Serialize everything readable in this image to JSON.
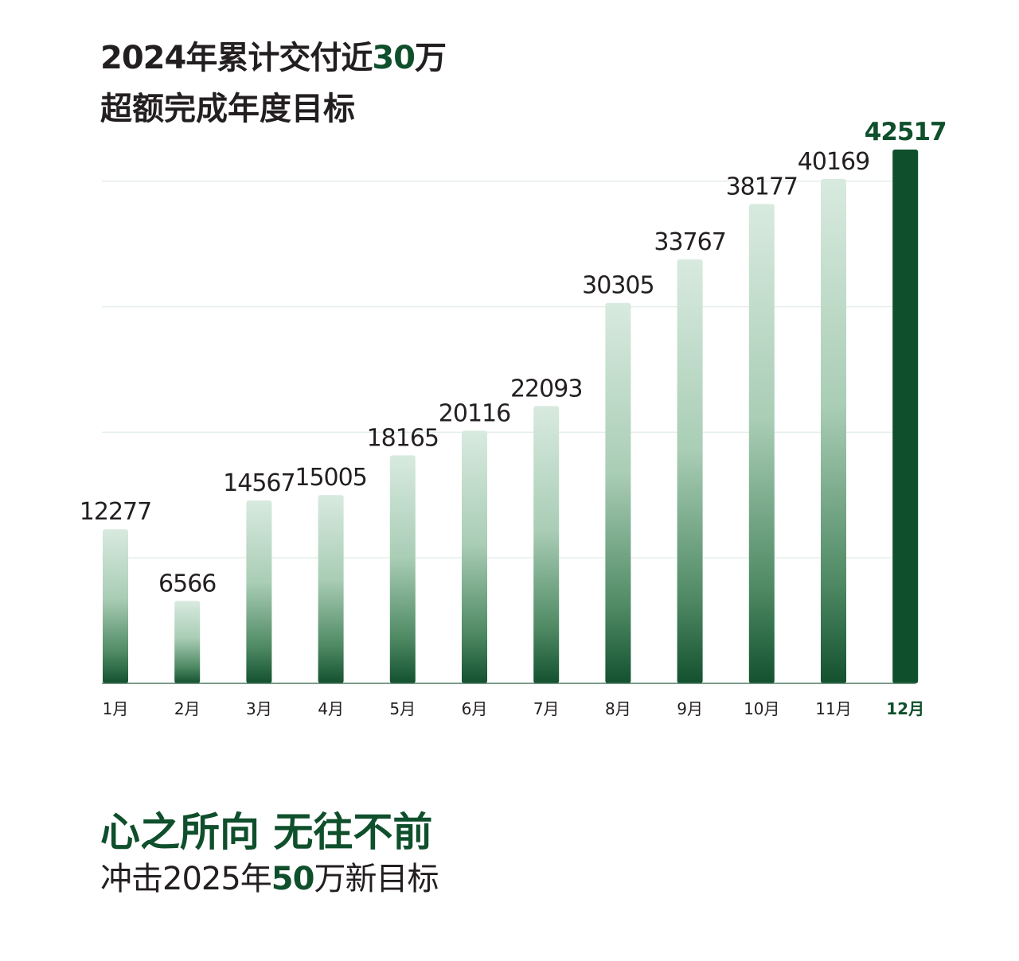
{
  "header": {
    "title_prefix": "2024年累计交付近",
    "title_highlight": "30",
    "title_suffix": "万",
    "subtitle": "超额完成年度目标"
  },
  "footer": {
    "slogan": "心之所向 无往不前",
    "goal_prefix": "冲击2025年",
    "goal_highlight": "50",
    "goal_suffix": "万新目标"
  },
  "colors": {
    "accent": "#0f4f2c",
    "bar_light": "#d8eadf",
    "bar_dark": "#13512f",
    "text": "#231f20"
  },
  "chart_data": {
    "type": "bar",
    "categories": [
      "1月",
      "2月",
      "3月",
      "4月",
      "5月",
      "6月",
      "7月",
      "8月",
      "9月",
      "10月",
      "11月",
      "12月"
    ],
    "values": [
      12277,
      6566,
      14567,
      15005,
      18165,
      20116,
      22093,
      30305,
      33767,
      38177,
      40169,
      42517
    ],
    "highlighted_category": "12月",
    "ylim": [
      0,
      42517
    ],
    "grid": true,
    "gridlines": [
      10000,
      20000,
      30000,
      40000
    ],
    "title": "",
    "xlabel": "",
    "ylabel": ""
  }
}
